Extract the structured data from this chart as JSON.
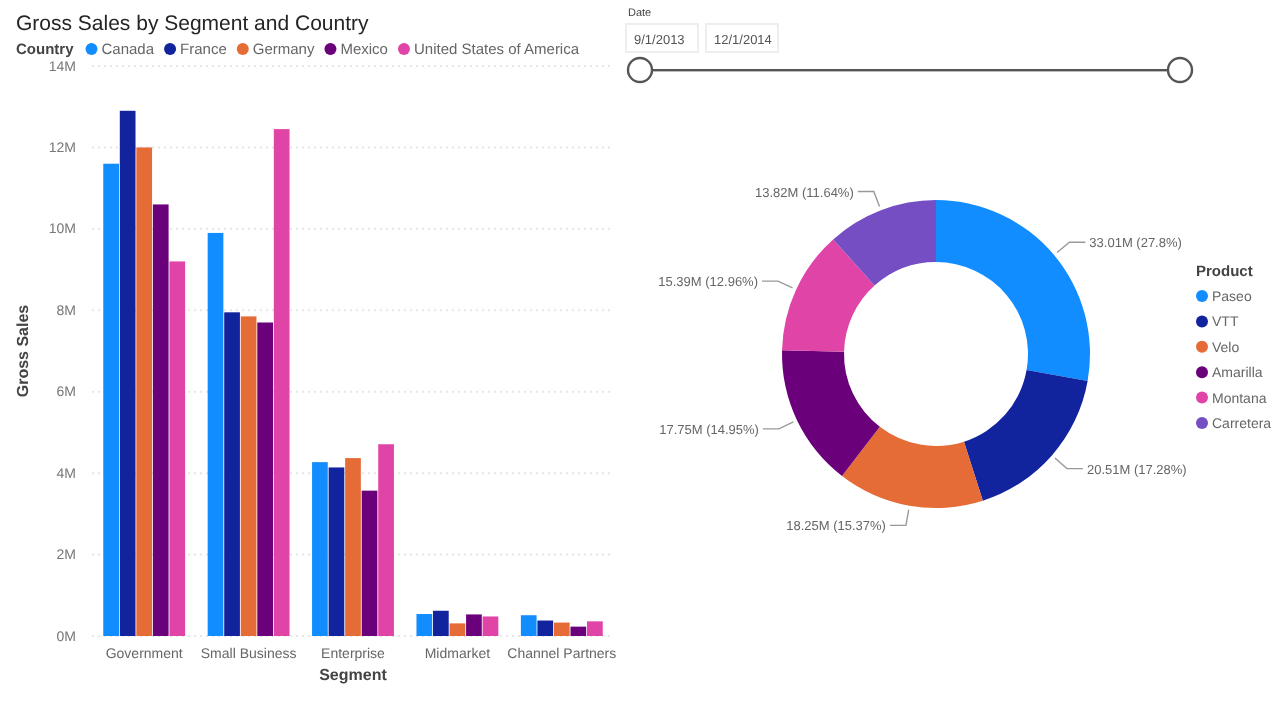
{
  "chart_data": [
    {
      "type": "bar",
      "title": "Gross Sales by Segment and Country",
      "xlabel": "Segment",
      "ylabel": "Gross Sales",
      "legend_title": "Country",
      "legend": "top left",
      "grid": "y",
      "categories": [
        "Government",
        "Small Business",
        "Enterprise",
        "Midmarket",
        "Channel Partners"
      ],
      "ylim": [
        0,
        14
      ],
      "yticks": [
        {
          "value": 0,
          "label": "0M"
        },
        {
          "value": 2,
          "label": "2M"
        },
        {
          "value": 4,
          "label": "4M"
        },
        {
          "value": 6,
          "label": "6M"
        },
        {
          "value": 8,
          "label": "8M"
        },
        {
          "value": 10,
          "label": "10M"
        },
        {
          "value": 12,
          "label": "12M"
        },
        {
          "value": 14,
          "label": "14M"
        }
      ],
      "series": [
        {
          "name": "Canada",
          "color": "#118dff",
          "values": [
            11.6,
            9.9,
            4.27,
            0.54,
            0.51
          ]
        },
        {
          "name": "France",
          "color": "#12239e",
          "values": [
            12.9,
            7.95,
            4.14,
            0.62,
            0.38
          ]
        },
        {
          "name": "Germany",
          "color": "#e66c37",
          "values": [
            12.0,
            7.85,
            4.37,
            0.31,
            0.33
          ]
        },
        {
          "name": "Mexico",
          "color": "#6b007b",
          "values": [
            10.6,
            7.7,
            3.57,
            0.53,
            0.23
          ]
        },
        {
          "name": "United States of America",
          "color": "#e044a7",
          "values": [
            9.2,
            12.45,
            4.71,
            0.48,
            0.36
          ]
        }
      ]
    },
    {
      "type": "other",
      "title": "Date",
      "annotations": [
        "9/1/2013",
        "12/1/2014"
      ]
    },
    {
      "type": "donut",
      "legend_title": "Product",
      "legend": "right",
      "categories": [
        "Paseo",
        "VTT",
        "Velo",
        "Amarilla",
        "Montana",
        "Carretera"
      ],
      "values": [
        27.8,
        17.28,
        15.37,
        14.95,
        12.96,
        11.64
      ],
      "colors": [
        "#118dff",
        "#12239e",
        "#e66c37",
        "#6b007b",
        "#e044a7",
        "#744ec2"
      ],
      "value_labels": [
        "33.01M (27.8%)",
        "20.51M (17.28%)",
        "18.25M (15.37%)",
        "17.75M (14.95%)",
        "15.39M (12.96%)",
        "13.82M (11.64%)"
      ]
    }
  ]
}
